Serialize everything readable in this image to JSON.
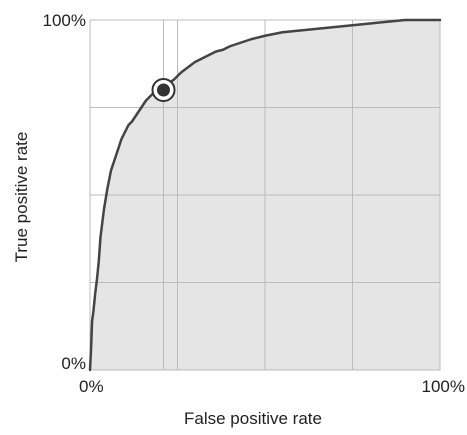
{
  "chart_data": {
    "type": "area",
    "xlabel": "False positive rate",
    "ylabel": "True positive rate",
    "xlim": [
      0,
      100
    ],
    "ylim": [
      0,
      100
    ],
    "grid": true,
    "x_ticks": [
      {
        "value": 0,
        "label": "0%"
      },
      {
        "value": 100,
        "label": "100%"
      }
    ],
    "y_ticks": [
      {
        "value": 0,
        "label": "0%"
      },
      {
        "value": 100,
        "label": "100%"
      }
    ],
    "x_gridlines": [
      0,
      21,
      25,
      50,
      75,
      100
    ],
    "y_gridlines": [
      0,
      25,
      50,
      75,
      100
    ],
    "series": [
      {
        "x": [
          0,
          0.3,
          0.6,
          1,
          1.5,
          2,
          2.5,
          3,
          4,
          5,
          6,
          7,
          8,
          9,
          10,
          11,
          12,
          13,
          14,
          15,
          16,
          17,
          18,
          19,
          20,
          21,
          22,
          24,
          26,
          28,
          30,
          32,
          34,
          36,
          38,
          40,
          43,
          46,
          50,
          55,
          60,
          65,
          70,
          75,
          80,
          85,
          90,
          95,
          100
        ],
        "y": [
          0,
          6,
          14,
          17,
          22,
          26,
          31,
          38,
          46,
          52,
          57,
          60,
          63,
          66,
          68,
          70,
          71,
          72.5,
          74,
          75.5,
          77,
          78,
          79,
          79.5,
          80,
          80.5,
          81.5,
          83,
          85,
          86.5,
          88,
          89,
          90,
          91,
          91.5,
          92.5,
          93.5,
          94.5,
          95.5,
          96.5,
          97,
          97.5,
          98,
          98.5,
          99,
          99.5,
          100,
          100,
          100
        ]
      }
    ],
    "operating_point": {
      "x": 21,
      "y": 80
    }
  },
  "colors": {
    "fill": "#e5e5e5",
    "line": "#444444",
    "grid": "#bbbbbb",
    "frame": "#bbbbbb",
    "marker": "#333333",
    "text": "#222222"
  }
}
